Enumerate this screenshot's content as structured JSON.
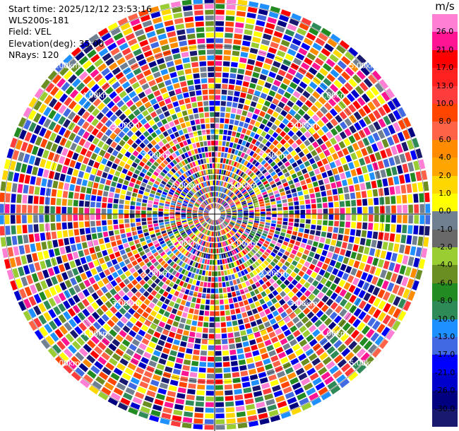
{
  "info": {
    "start_time": "Start time: 2025/12/12 23:53:16",
    "station": "WLS200s-181",
    "field": "Field: VEL",
    "elevation": "Elevation(deg): 35.00",
    "nrays": "NRays: 120"
  },
  "colorbar": {
    "unit": "m/s",
    "ticks": [
      "26.0",
      "21.0",
      "17.0",
      "13.0",
      "10.0",
      "8.0",
      "6.0",
      "4.0",
      "2.0",
      "1.0",
      "0.0",
      "-1.0",
      "-2.0",
      "-4.0",
      "-6.0",
      "-8.0",
      "-10.0",
      "-13.0",
      "-17.0",
      "-21.0",
      "-26.0",
      "-30.0"
    ],
    "colors": [
      "#ff7fd4",
      "#ff1493",
      "#ff0000",
      "#ff2020",
      "#ff3c3c",
      "#ff4500",
      "#ff6347",
      "#ff8c00",
      "#ffa500",
      "#ffd700",
      "#ffff00",
      "#708090",
      "#696969",
      "#9acd32",
      "#6b8e23",
      "#228b22",
      "#2e8b57",
      "#1e90ff",
      "#4169e1",
      "#0000ff",
      "#0000cd",
      "#000080",
      "#191970"
    ]
  },
  "chart_data": {
    "type": "heatmap",
    "subtype": "polar-ppi",
    "field": "VEL",
    "units": "m/s",
    "nrays": 120,
    "range_ring_labels": [
      "1.00km",
      "2.00km",
      "3.00km",
      "4.00km",
      "5.00km"
    ],
    "value_range": [
      -30.0,
      26.0
    ],
    "crosshair": true
  }
}
